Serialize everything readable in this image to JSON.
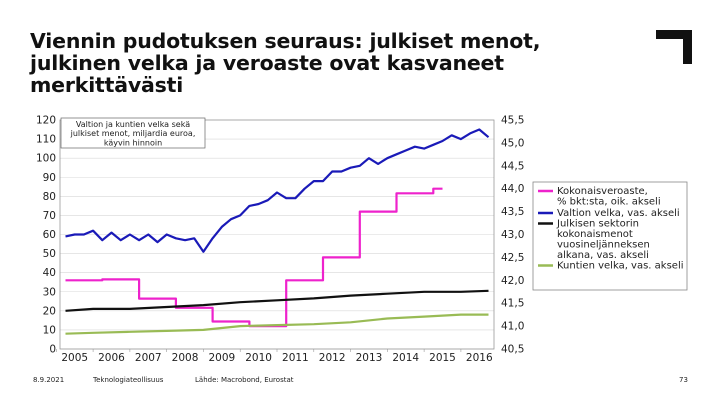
{
  "slide": {
    "title_lines": [
      "Viennin pudotuksen seuraus: julkiset menot,",
      "julkinen velka ja veroaste ovat kasvaneet",
      "merkittävästi"
    ],
    "footer_date": "8.9.2021",
    "footer_org": "Teknologiateollisuus",
    "footer_source": "Lähde: Macrobond, Eurostat",
    "page_number": "73",
    "logo_icon": "corner-bracket-logo-icon"
  },
  "chart_data": {
    "type": "line",
    "title": "Valtion ja kuntien velka sekä julkiset menot, miljardia euroa, käyvin hinnoin",
    "title_lines": [
      "Valtion ja kuntien velka sekä",
      "julkiset menot, miljardia euroa,",
      "käyvin hinnoin"
    ],
    "x_tick_labels": [
      "2005",
      "2006",
      "2007",
      "2008",
      "2009",
      "2010",
      "2011",
      "2012",
      "2013",
      "2014",
      "2015",
      "2016"
    ],
    "x_range": [
      2004.6,
      2016.4
    ],
    "left_axis": {
      "ylim": [
        0,
        120
      ],
      "ticks": [
        "0",
        "10",
        "20",
        "30",
        "40",
        "50",
        "60",
        "70",
        "80",
        "90",
        "100",
        "110",
        "120"
      ]
    },
    "right_axis": {
      "ylim": [
        40.5,
        45.5
      ],
      "ticks": [
        "40,5",
        "41,0",
        "41,5",
        "42,0",
        "42,5",
        "43,0",
        "43,5",
        "44,0",
        "44,5",
        "45,0",
        "45,5"
      ]
    },
    "legend": {
      "position": "right",
      "entries": [
        {
          "lines": [
            "Kokonaisveroaste,",
            "% bkt:sta, oik. akseli"
          ],
          "color": "#ee22cc"
        },
        {
          "lines": [
            "Valtion velka, vas. akseli"
          ],
          "color": "#1a1ab8"
        },
        {
          "lines": [
            "Julkisen sektorin",
            "kokonaismenot",
            "vuosineljänneksen",
            "alkana, vas. akseli"
          ],
          "color": "#111111"
        },
        {
          "lines": [
            "Kuntien velka, vas. akseli"
          ],
          "color": "#99bb55"
        }
      ]
    },
    "series": [
      {
        "name": "Kokonaisveroaste, % bkt:sta, oik. akseli",
        "axis": "right",
        "color": "#ee22cc",
        "step": true,
        "x": [
          2004.75,
          2005.75,
          2006.75,
          2007.75,
          2008.75,
          2009.75,
          2010.75,
          2011.75,
          2012.75,
          2013.75,
          2014.75,
          2015.0
        ],
        "values": [
          42.0,
          42.02,
          41.6,
          41.4,
          41.1,
          41.0,
          42.0,
          42.5,
          43.5,
          43.9,
          44.0,
          44.0
        ]
      },
      {
        "name": "Valtion velka, vas. akseli",
        "axis": "left",
        "color": "#1a1ab8",
        "x": [
          2004.75,
          2005.0,
          2005.25,
          2005.5,
          2005.75,
          2006.0,
          2006.25,
          2006.5,
          2006.75,
          2007.0,
          2007.25,
          2007.5,
          2007.75,
          2008.0,
          2008.25,
          2008.5,
          2008.75,
          2009.0,
          2009.25,
          2009.5,
          2009.75,
          2010.0,
          2010.25,
          2010.5,
          2010.75,
          2011.0,
          2011.25,
          2011.5,
          2011.75,
          2012.0,
          2012.25,
          2012.5,
          2012.75,
          2013.0,
          2013.25,
          2013.5,
          2013.75,
          2014.0,
          2014.25,
          2014.5,
          2014.75,
          2015.0,
          2015.25,
          2015.5,
          2015.75,
          2016.0,
          2016.25
        ],
        "values": [
          59,
          60,
          60,
          62,
          57,
          61,
          57,
          60,
          57,
          60,
          56,
          60,
          58,
          57,
          58,
          51,
          58,
          64,
          68,
          70,
          75,
          76,
          78,
          82,
          79,
          79,
          84,
          88,
          88,
          93,
          93,
          95,
          96,
          100,
          97,
          100,
          102,
          104,
          106,
          105,
          107,
          109,
          112,
          110,
          113,
          115,
          111
        ]
      },
      {
        "name": "Julkisen sektorin kokonaismenot vuosineljänneksen alkana, vas. akseli",
        "axis": "left",
        "color": "#111111",
        "x": [
          2004.75,
          2005.5,
          2006.5,
          2007.5,
          2008.5,
          2009.5,
          2010.5,
          2011.5,
          2012.5,
          2013.5,
          2014.5,
          2015.5,
          2016.25
        ],
        "values": [
          20,
          21,
          21,
          22,
          23,
          24.5,
          25.5,
          26.5,
          28,
          29,
          30,
          30,
          30.5
        ]
      },
      {
        "name": "Kuntien velka, vas. akseli",
        "axis": "left",
        "color": "#99bb55",
        "x": [
          2004.75,
          2005.5,
          2006.5,
          2007.5,
          2008.5,
          2009.5,
          2010.5,
          2011.5,
          2012.5,
          2013.5,
          2014.5,
          2015.5,
          2016.25
        ],
        "values": [
          8,
          8.5,
          9,
          9.5,
          10,
          12,
          12.5,
          13,
          14,
          16,
          17,
          18,
          18
        ]
      }
    ]
  }
}
